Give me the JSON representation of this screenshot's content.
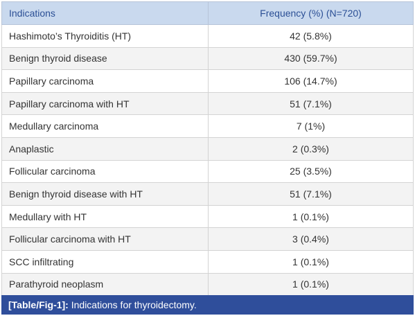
{
  "table": {
    "header": [
      "Indications",
      "Frequency (%) (N=720)"
    ],
    "rows": [
      [
        "Hashimoto’s Thyroiditis (HT)",
        "42 (5.8%)"
      ],
      [
        "Benign thyroid disease",
        "430 (59.7%)"
      ],
      [
        "Papillary carcinoma",
        "106 (14.7%)"
      ],
      [
        "Papillary carcinoma with HT",
        "51 (7.1%)"
      ],
      [
        "Medullary carcinoma",
        "7 (1%)"
      ],
      [
        "Anaplastic",
        "2 (0.3%)"
      ],
      [
        "Follicular carcinoma",
        "25 (3.5%)"
      ],
      [
        "Benign thyroid disease with HT",
        "51 (7.1%)"
      ],
      [
        "Medullary with HT",
        "1 (0.1%)"
      ],
      [
        "Follicular carcinoma with HT",
        "3 (0.4%)"
      ],
      [
        "SCC infiltrating",
        "1 (0.1%)"
      ],
      [
        "Parathyroid neoplasm",
        "1 (0.1%)"
      ]
    ]
  },
  "caption": {
    "label": "[Table/Fig-1]:",
    "text": "Indications for thyroidectomy."
  }
}
